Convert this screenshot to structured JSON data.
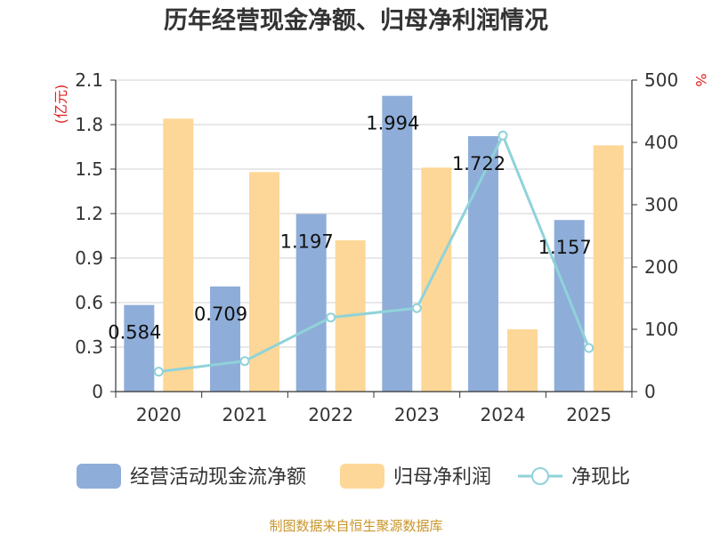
{
  "chart_data": {
    "type": "bar",
    "title": "历年经营现金净额、归母净利润情况",
    "categories": [
      "2020",
      "2021",
      "2022",
      "2023",
      "2024",
      "2025"
    ],
    "series": [
      {
        "name": "经营活动现金流净额",
        "type": "bar",
        "axis": "left",
        "color": "#8fadd9",
        "values": [
          0.584,
          0.709,
          1.197,
          1.994,
          1.722,
          1.157
        ]
      },
      {
        "name": "归母净利润",
        "type": "bar",
        "axis": "left",
        "color": "#fdd798",
        "values": [
          1.84,
          1.48,
          1.02,
          1.51,
          0.42,
          1.66
        ]
      },
      {
        "name": "净现比",
        "type": "line",
        "axis": "right",
        "color": "#8fd3d9",
        "values": [
          32,
          49,
          119,
          134,
          411,
          70
        ]
      }
    ],
    "data_labels": [
      "0.584",
      "0.709",
      "1.197",
      "1.994",
      "1.722",
      "1.157"
    ],
    "left_axis": {
      "label": "(亿元)",
      "ylim": [
        0,
        2.1
      ],
      "ticks": [
        "0",
        "0.3",
        "0.6",
        "0.9",
        "1.2",
        "1.5",
        "1.8",
        "2.1"
      ]
    },
    "right_axis": {
      "label": "%",
      "ylim": [
        0,
        500
      ],
      "ticks": [
        "0",
        "100",
        "200",
        "300",
        "400",
        "500"
      ]
    },
    "grid": true,
    "legend_position": "bottom",
    "source": "制图数据来自恒生聚源数据库"
  }
}
